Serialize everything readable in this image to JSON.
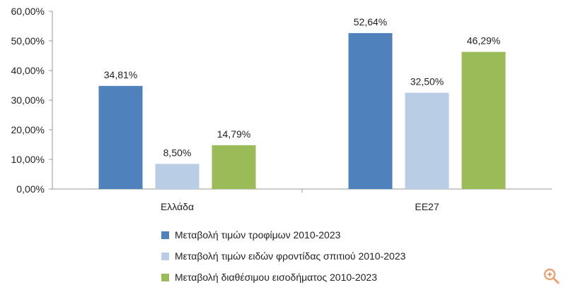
{
  "chart_data": {
    "type": "bar",
    "categories": [
      "Ελλάδα",
      "ΕΕ27"
    ],
    "series": [
      {
        "name": "Μεταβολή τιμών τροφίμων 2010-2023",
        "values": [
          34.81,
          52.64
        ],
        "labels": [
          "34,81%",
          "52,64%"
        ],
        "color": "#4f81bd"
      },
      {
        "name": "Μεταβολή τιμών ειδών φροντίδας σπιτιού 2010-2023",
        "values": [
          8.5,
          32.5
        ],
        "labels": [
          "8,50%",
          "32,50%"
        ],
        "color": "#b9cde5"
      },
      {
        "name": "Μεταβολή διαθέσιμου εισοδήματος 2010-2023",
        "values": [
          14.79,
          46.29
        ],
        "labels": [
          "14,79%",
          "46,29%"
        ],
        "color": "#9bbb59"
      }
    ],
    "yticks": [
      "0,00%",
      "10,00%",
      "20,00%",
      "30,00%",
      "40,00%",
      "50,00%",
      "60,00%"
    ],
    "ylim": [
      0,
      60
    ],
    "legend_position": "bottom",
    "grid": false
  },
  "ui": {
    "zoom_icon_color": "#f0a070"
  }
}
